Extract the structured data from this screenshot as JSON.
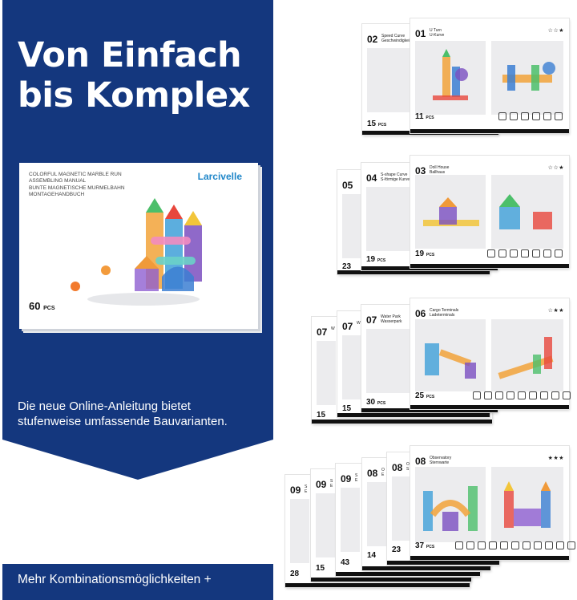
{
  "left": {
    "headline_line1": "Von Einfach",
    "headline_line2": "bis Komplex",
    "cover": {
      "line1": "COLORFUL MAGNETIC MARBLE RUN",
      "line2": "ASSEMBLING MANUAL",
      "line3": "BUNTE MAGNETISCHE MURMELBAHN",
      "line4": "MONTAGEHANDBUCH",
      "brand": "Larcivelle",
      "pcs_number": "60",
      "pcs_label": "PCS"
    },
    "subtext_line1": "Die neue Online-Anleitung bietet",
    "subtext_line2": "stufenweise umfassende Bauvarianten.",
    "footer": "Mehr Kombinationsmöglichkeiten +"
  },
  "colors": {
    "navy": "#14377e",
    "white": "#ffffff",
    "brand_blue": "#1f86c9"
  },
  "stacks": {
    "s1": {
      "back": {
        "num": "02",
        "title1": "Speed Curve",
        "title2": "Geschwindigkeit",
        "pcs": "15",
        "pcs_label": "PCS"
      },
      "front": {
        "num": "01",
        "title1": "U Turn",
        "title2": "U-Kurve",
        "stars": "☆☆★",
        "pcs": "11",
        "pcs_label": "PCS"
      }
    },
    "s2": {
      "back2": {
        "num": "05",
        "pcs": "23"
      },
      "back": {
        "num": "04",
        "title1": "S-shape Curve",
        "title2": "S-förmige Kurve",
        "pcs": "19",
        "pcs_label": "PCS"
      },
      "front": {
        "num": "03",
        "title1": "Doll House",
        "title2": "Ballhaus",
        "stars": "☆☆★",
        "pcs": "19",
        "pcs_label": "PCS"
      }
    },
    "s3": {
      "back3": {
        "num": "07",
        "title1": "W",
        "pcs": "15"
      },
      "back2": {
        "num": "07",
        "title1": "W",
        "pcs": "15"
      },
      "back": {
        "num": "07",
        "title1": "Water Park",
        "title2": "Wasserpark",
        "pcs": "30",
        "pcs_label": "PCS"
      },
      "front": {
        "num": "06",
        "title1": "Cargo Terminals",
        "title2": "Ladeterminals",
        "stars": "☆★★",
        "pcs": "25",
        "pcs_label": "PCS"
      }
    },
    "s4": {
      "b5": {
        "num": "09",
        "title1": "S",
        "title2": "E",
        "pcs": "28"
      },
      "b4": {
        "num": "09",
        "title1": "S",
        "title2": "E",
        "pcs": "15"
      },
      "b3": {
        "num": "09",
        "title1": "S",
        "title2": "E",
        "pcs": "43"
      },
      "b2": {
        "num": "08",
        "title1": "O",
        "title2": "E",
        "pcs": "14"
      },
      "b1": {
        "num": "08",
        "title1": "O",
        "title2": "S",
        "pcs": "23"
      },
      "front": {
        "num": "08",
        "title1": "Observatory",
        "title2": "Sternwarte",
        "stars": "★★★",
        "pcs": "37",
        "pcs_label": "PCS"
      }
    }
  }
}
